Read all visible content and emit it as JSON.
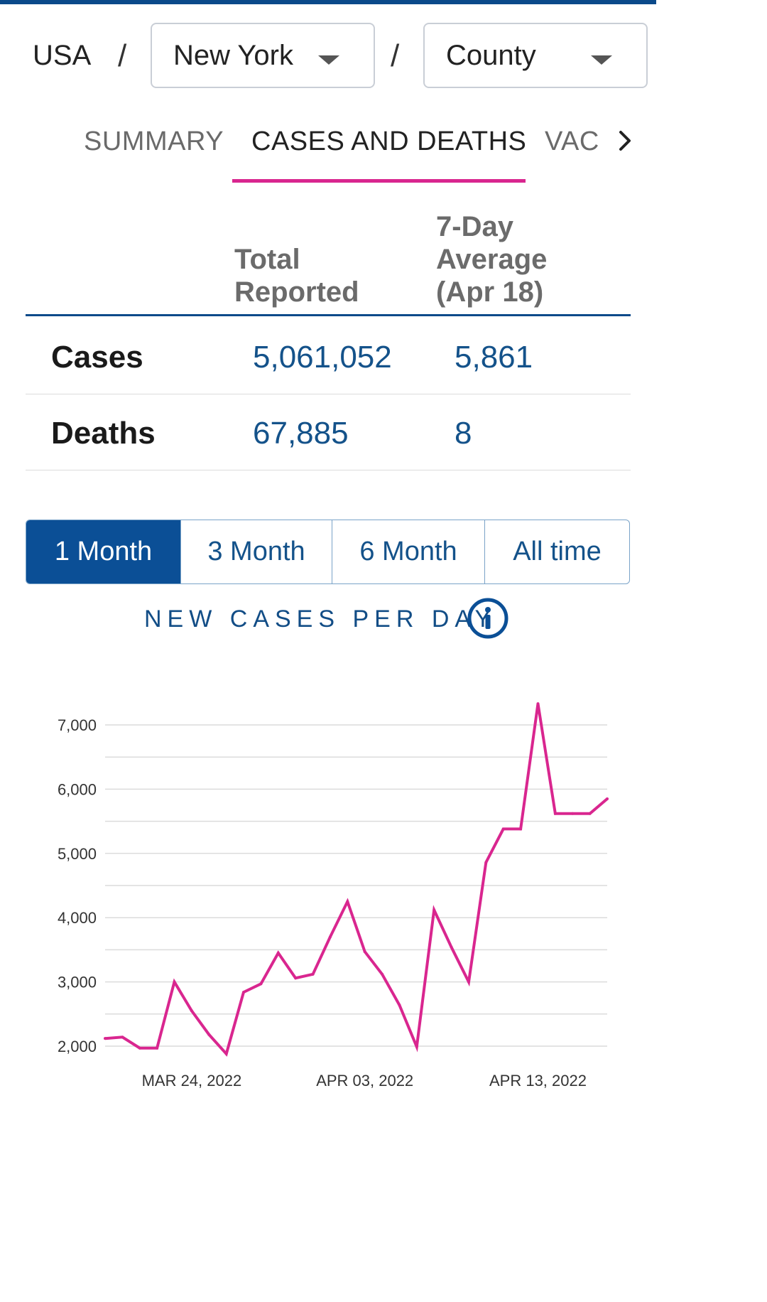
{
  "breadcrumb": {
    "country": "USA",
    "separator": "/",
    "state": "New York",
    "level": "County"
  },
  "tabs": [
    {
      "label": "SUMMARY",
      "active": false
    },
    {
      "label": "CASES AND DEATHS",
      "active": true
    },
    {
      "label": "VAC",
      "active": false
    }
  ],
  "stats": {
    "col_total": "Total\nReported",
    "col_avg": "7-Day\nAverage\n(Apr 18)",
    "rows": [
      {
        "label": "Cases",
        "total": "5,061,052",
        "avg": "5,861"
      },
      {
        "label": "Deaths",
        "total": "67,885",
        "avg": "8"
      }
    ]
  },
  "range_options": [
    "1 Month",
    "3 Month",
    "6 Month",
    "All time"
  ],
  "range_selected": "1 Month",
  "chart_title": "NEW CASES PER DAY",
  "colors": {
    "accent": "#d9268f",
    "brand": "#0b4f96",
    "value": "#14528a"
  },
  "chart_data": {
    "type": "line",
    "title": "NEW CASES PER DAY",
    "xlabel": "",
    "ylabel": "",
    "ylim": [
      1900,
      7400
    ],
    "yticks": [
      2000,
      3000,
      4000,
      5000,
      6000,
      7000
    ],
    "ytick_labels": [
      "2,000",
      "3,000",
      "4,000",
      "5,000",
      "6,000",
      "7,000"
    ],
    "xtick_labels": [
      "MAR 24, 2022",
      "APR 03, 2022",
      "APR 13, 2022"
    ],
    "xtick_index": [
      5,
      15,
      25
    ],
    "grid": true,
    "series": [
      {
        "values": [
          2120,
          2140,
          1970,
          1970,
          3000,
          2550,
          2180,
          1880,
          2840,
          2970,
          3450,
          3060,
          3120,
          3700,
          4250,
          3470,
          3120,
          2640,
          1990,
          4120,
          3540,
          3000,
          4860,
          5380,
          5380,
          7330,
          5620,
          5620,
          5620,
          5850
        ]
      }
    ]
  }
}
